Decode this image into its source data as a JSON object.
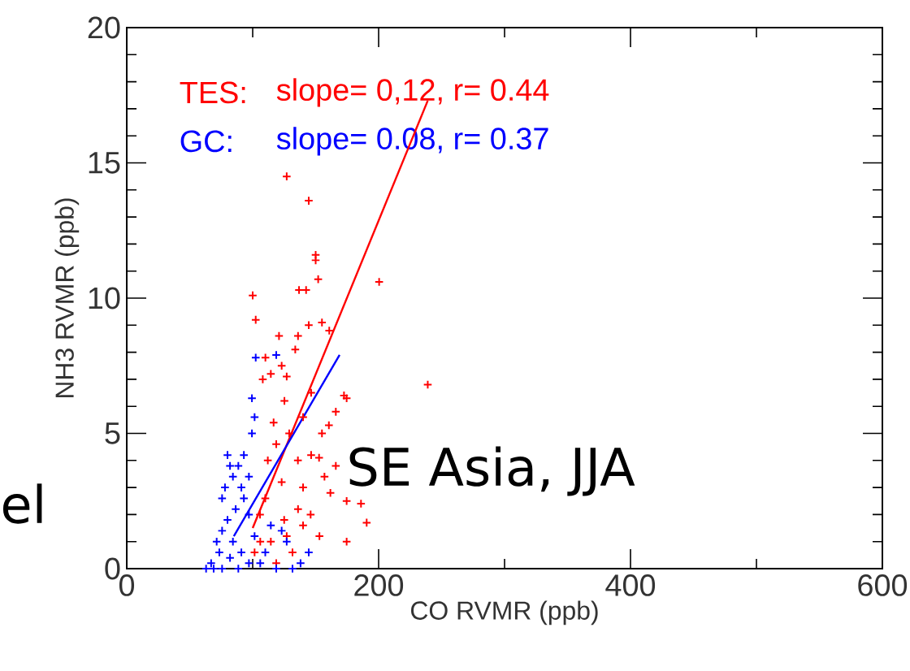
{
  "chart_data": {
    "type": "scatter",
    "xlabel": "CO RVMR (ppb)",
    "ylabel": "NH3 RVMR (ppb)",
    "xlim": [
      0,
      600
    ],
    "ylim": [
      0,
      20
    ],
    "xticks": [
      0,
      200,
      400,
      600
    ],
    "yticks": [
      0,
      5,
      10,
      15,
      20
    ],
    "marker": "cross",
    "series": [
      {
        "name": "TES:",
        "color": "#ff0000",
        "x": [
          127,
          144.5,
          150,
          150,
          152,
          200.4,
          100,
          136.8,
          142.4,
          102.4,
          144.5,
          155,
          160.8,
          120.9,
          136,
          133.8,
          110.1,
          114.4,
          127,
          239,
          172.5,
          174.6,
          166,
          160.5,
          155,
          125.2,
          116.6,
          140,
          146.4,
          152.7,
          135.9,
          123,
          140,
          161.7,
          174.6,
          186,
          190.5,
          174.6,
          153,
          140,
          127,
          114.4,
          105.8,
          101.5,
          118.7,
          131.6,
          110,
          118.7,
          108,
          123,
          129,
          146.4,
          112,
          136,
          125,
          146,
          157,
          166,
          106
        ],
        "values": [
          14.5,
          13.6,
          11.6,
          11.4,
          10.7,
          10.6,
          10.1,
          10.3,
          10.3,
          9.2,
          9.0,
          9.1,
          8.8,
          8.6,
          8.6,
          8.1,
          7.8,
          7.2,
          7.1,
          6.8,
          6.4,
          6.3,
          5.8,
          5.3,
          5.0,
          6.2,
          5.4,
          5.6,
          4.2,
          4.1,
          4.0,
          3.2,
          3.0,
          2.8,
          2.5,
          2.4,
          1.7,
          1.0,
          1.2,
          1.6,
          1.2,
          1.0,
          2.0,
          0.6,
          0.2,
          0.6,
          2.6,
          4.6,
          7.0,
          7.5,
          5.0,
          6.5,
          4.0,
          2.2,
          1.8,
          2.0,
          3.4,
          3.8,
          1.0
        ]
      },
      {
        "name": "GC:",
        "color": "#0000ff",
        "x": [
          102.4,
          118.7,
          99.4,
          101.5,
          99.4,
          80,
          93,
          88.6,
          84.3,
          97,
          75.7,
          93,
          80,
          97,
          71.4,
          84.3,
          101.5,
          114.4,
          123,
          110,
          127,
          144.5,
          138,
          67,
          63,
          75.7,
          88.6,
          97,
          82,
          91,
          75.7,
          86.5,
          78,
          91,
          82,
          73.5,
          69,
          106,
          118.7,
          131.6
        ],
        "values": [
          7.8,
          7.9,
          6.3,
          5.6,
          5.0,
          4.2,
          4.2,
          3.8,
          3.4,
          3.4,
          2.6,
          2.6,
          1.8,
          2.0,
          1.0,
          1.0,
          1.2,
          1.6,
          1.4,
          0.6,
          1.0,
          0.6,
          0.2,
          0.2,
          0.0,
          0.0,
          0.0,
          0.2,
          0.4,
          0.6,
          1.4,
          2.2,
          3.0,
          3.0,
          3.8,
          0.6,
          0.0,
          0.2,
          0.0,
          0.0
        ]
      },
      {
        "type": "line",
        "marker": "none",
        "color": "#ff0000",
        "x": [
          100,
          239
        ],
        "values": [
          1.5,
          17.3
        ]
      },
      {
        "type": "line",
        "marker": "none",
        "color": "#0000ff",
        "x": [
          85,
          169
        ],
        "values": [
          1.2,
          7.9
        ]
      }
    ],
    "annotations": [
      "slope= 0,12, r= 0.44",
      "slope= 0.08, r= 0.37",
      "SE Asia, JJA",
      "el"
    ]
  }
}
